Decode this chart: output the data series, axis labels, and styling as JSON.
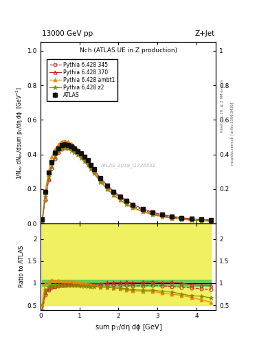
{
  "title_left": "13000 GeV pp",
  "title_right": "Z+Jet",
  "plot_title": "Nch (ATLAS UE in Z production)",
  "xlabel": "sum p$_T$/dη dϕ [GeV]",
  "ylabel_main": "1/N$_{ev}$ dN$_{ev}$/dsum p$_T$/dη dϕ  [GeV$^{-1}$]",
  "ylabel_ratio": "Ratio to ATLAS",
  "watermark": "ATLAS_2019_I1736531",
  "rivet_text": "Rivet 3.1.10, ≥ 2.9M events",
  "mcplots_text": "mcplots.cern.ch [arXiv:1306.3436]",
  "xlim": [
    0.0,
    4.5
  ],
  "ylim_main": [
    0.0,
    1.05
  ],
  "ylim_ratio": [
    0.4,
    2.35
  ],
  "atlas_x": [
    0.04,
    0.12,
    0.21,
    0.29,
    0.37,
    0.46,
    0.54,
    0.62,
    0.71,
    0.79,
    0.87,
    0.96,
    1.04,
    1.12,
    1.21,
    1.29,
    1.37,
    1.54,
    1.71,
    1.87,
    2.04,
    2.21,
    2.37,
    2.62,
    2.87,
    3.12,
    3.37,
    3.62,
    3.87,
    4.12,
    4.37
  ],
  "atlas_y": [
    0.025,
    0.185,
    0.295,
    0.355,
    0.41,
    0.435,
    0.455,
    0.46,
    0.455,
    0.445,
    0.435,
    0.42,
    0.405,
    0.385,
    0.365,
    0.34,
    0.315,
    0.265,
    0.22,
    0.185,
    0.155,
    0.13,
    0.108,
    0.083,
    0.063,
    0.05,
    0.04,
    0.033,
    0.028,
    0.024,
    0.021
  ],
  "atlas_yerr": [
    0.003,
    0.005,
    0.005,
    0.005,
    0.005,
    0.005,
    0.005,
    0.005,
    0.005,
    0.005,
    0.005,
    0.005,
    0.005,
    0.005,
    0.005,
    0.005,
    0.005,
    0.004,
    0.004,
    0.004,
    0.004,
    0.003,
    0.003,
    0.003,
    0.002,
    0.002,
    0.002,
    0.002,
    0.002,
    0.002,
    0.002
  ],
  "p345_x": [
    0.04,
    0.12,
    0.21,
    0.29,
    0.37,
    0.46,
    0.54,
    0.62,
    0.71,
    0.79,
    0.87,
    0.96,
    1.04,
    1.12,
    1.21,
    1.29,
    1.37,
    1.54,
    1.71,
    1.87,
    2.04,
    2.21,
    2.37,
    2.62,
    2.87,
    3.12,
    3.37,
    3.62,
    3.87,
    4.12,
    4.37
  ],
  "p345_y": [
    0.008,
    0.135,
    0.25,
    0.32,
    0.375,
    0.41,
    0.43,
    0.44,
    0.44,
    0.43,
    0.42,
    0.405,
    0.39,
    0.37,
    0.35,
    0.325,
    0.3,
    0.252,
    0.212,
    0.178,
    0.149,
    0.124,
    0.102,
    0.078,
    0.06,
    0.047,
    0.037,
    0.03,
    0.025,
    0.021,
    0.018
  ],
  "p370_x": [
    0.04,
    0.12,
    0.21,
    0.29,
    0.37,
    0.46,
    0.54,
    0.62,
    0.71,
    0.79,
    0.87,
    0.96,
    1.04,
    1.12,
    1.21,
    1.29,
    1.37,
    1.54,
    1.71,
    1.87,
    2.04,
    2.21,
    2.37,
    2.62,
    2.87,
    3.12,
    3.37,
    3.62,
    3.87,
    4.12,
    4.37
  ],
  "p370_y": [
    0.01,
    0.145,
    0.26,
    0.33,
    0.385,
    0.42,
    0.44,
    0.45,
    0.45,
    0.44,
    0.43,
    0.415,
    0.4,
    0.38,
    0.36,
    0.335,
    0.31,
    0.262,
    0.222,
    0.188,
    0.158,
    0.133,
    0.11,
    0.085,
    0.065,
    0.051,
    0.041,
    0.033,
    0.027,
    0.023,
    0.02
  ],
  "pambt1_x": [
    0.04,
    0.12,
    0.21,
    0.29,
    0.37,
    0.46,
    0.54,
    0.62,
    0.71,
    0.79,
    0.87,
    0.96,
    1.04,
    1.12,
    1.21,
    1.29,
    1.37,
    1.54,
    1.71,
    1.87,
    2.04,
    2.21,
    2.37,
    2.62,
    2.87,
    3.12,
    3.37,
    3.62,
    3.87,
    4.12,
    4.37
  ],
  "pambt1_y": [
    0.013,
    0.185,
    0.305,
    0.385,
    0.43,
    0.46,
    0.475,
    0.48,
    0.475,
    0.462,
    0.448,
    0.43,
    0.41,
    0.385,
    0.36,
    0.33,
    0.3,
    0.245,
    0.2,
    0.165,
    0.135,
    0.11,
    0.09,
    0.068,
    0.051,
    0.039,
    0.03,
    0.024,
    0.019,
    0.015,
    0.012
  ],
  "pz2_x": [
    0.04,
    0.12,
    0.21,
    0.29,
    0.37,
    0.46,
    0.54,
    0.62,
    0.71,
    0.79,
    0.87,
    0.96,
    1.04,
    1.12,
    1.21,
    1.29,
    1.37,
    1.54,
    1.71,
    1.87,
    2.04,
    2.21,
    2.37,
    2.62,
    2.87,
    3.12,
    3.37,
    3.62,
    3.87,
    4.12,
    4.37
  ],
  "pz2_y": [
    0.01,
    0.155,
    0.27,
    0.34,
    0.39,
    0.42,
    0.435,
    0.44,
    0.435,
    0.424,
    0.412,
    0.397,
    0.38,
    0.36,
    0.34,
    0.315,
    0.29,
    0.241,
    0.2,
    0.166,
    0.138,
    0.113,
    0.092,
    0.07,
    0.053,
    0.041,
    0.032,
    0.025,
    0.02,
    0.017,
    0.014
  ],
  "ratio_p345_y": [
    0.32,
    0.73,
    0.848,
    0.901,
    0.914,
    0.942,
    0.945,
    0.957,
    0.967,
    0.967,
    0.966,
    0.964,
    0.963,
    0.961,
    0.959,
    0.956,
    0.952,
    0.951,
    0.964,
    0.962,
    0.961,
    0.954,
    0.944,
    0.94,
    0.952,
    0.94,
    0.925,
    0.909,
    0.893,
    0.875,
    0.857
  ],
  "ratio_p370_y": [
    0.4,
    0.784,
    0.881,
    0.929,
    0.939,
    0.966,
    0.967,
    0.978,
    0.989,
    0.989,
    0.989,
    0.988,
    0.988,
    0.987,
    0.986,
    0.985,
    0.984,
    0.989,
    1.009,
    1.016,
    1.019,
    1.023,
    1.019,
    1.024,
    1.032,
    1.02,
    1.025,
    1.0,
    0.964,
    0.958,
    0.952
  ],
  "ratio_pambt1_y": [
    0.52,
    1.0,
    1.034,
    1.084,
    1.049,
    1.057,
    1.044,
    1.043,
    1.044,
    1.038,
    1.03,
    1.024,
    1.012,
    1.0,
    0.986,
    0.971,
    0.952,
    0.925,
    0.909,
    0.892,
    0.871,
    0.846,
    0.833,
    0.819,
    0.81,
    0.78,
    0.75,
    0.727,
    0.679,
    0.625,
    0.571
  ],
  "ratio_pz2_y": [
    0.4,
    0.838,
    0.915,
    0.958,
    0.951,
    0.966,
    0.956,
    0.957,
    0.956,
    0.953,
    0.947,
    0.945,
    0.938,
    0.935,
    0.932,
    0.926,
    0.921,
    0.909,
    0.909,
    0.897,
    0.89,
    0.869,
    0.852,
    0.843,
    0.841,
    0.82,
    0.8,
    0.758,
    0.714,
    0.708,
    0.667
  ],
  "color_p345": "#bb3333",
  "color_p370": "#cc2222",
  "color_pambt1": "#ee8800",
  "color_pz2": "#888800",
  "color_atlas": "#111111",
  "band_green": "#55cc55",
  "band_yellow": "#eeee44"
}
